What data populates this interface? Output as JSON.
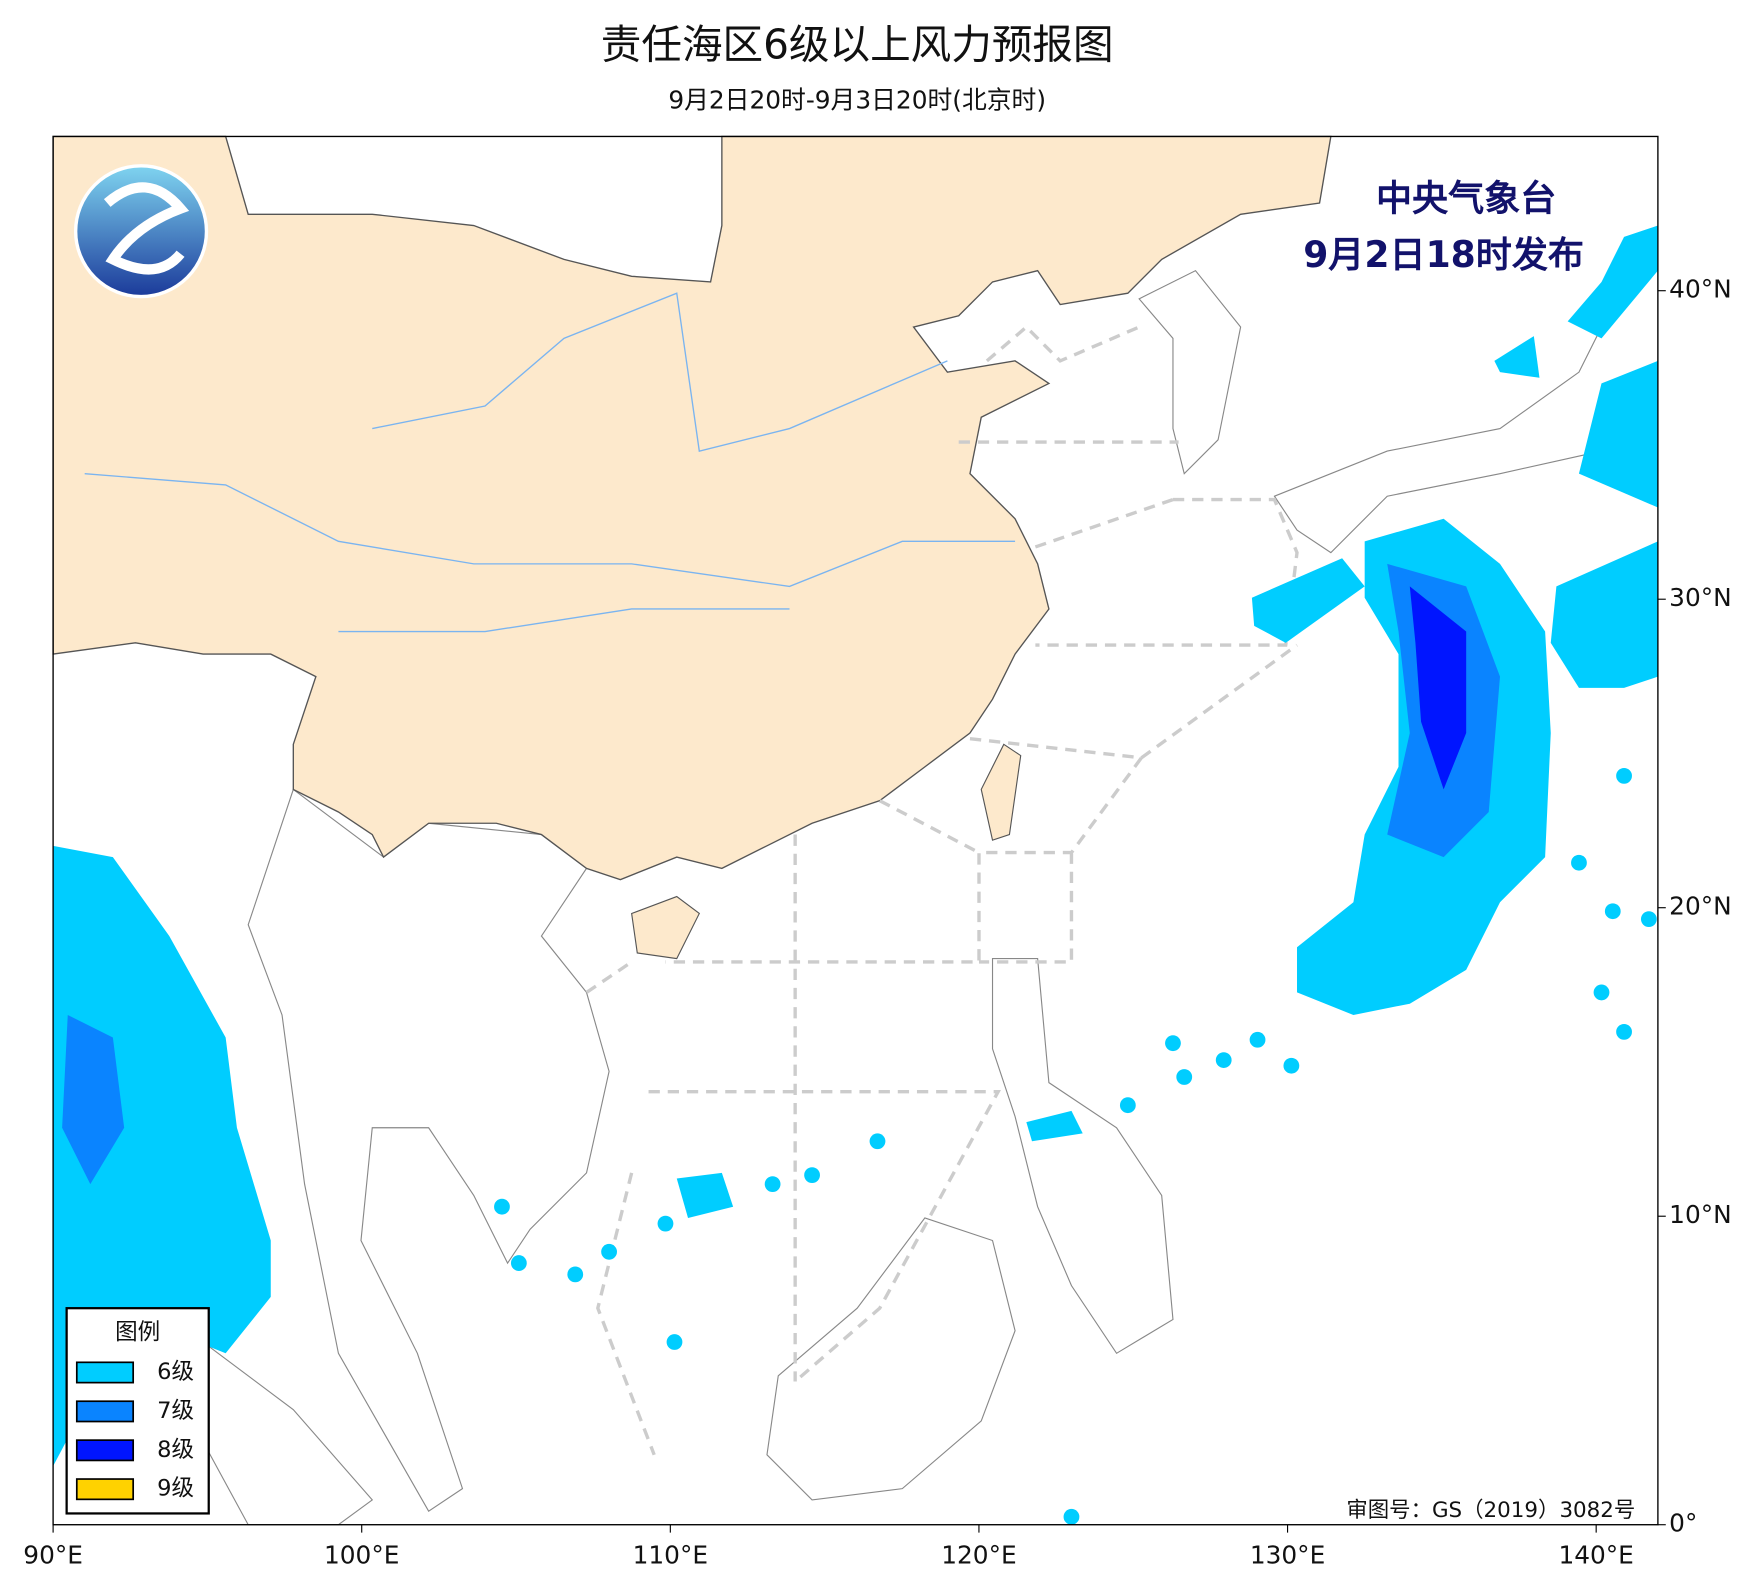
{
  "header": {
    "title": "责任海区6级以上风力预报图",
    "subtitle": "9月2日20时-9月3日20时(北京时)"
  },
  "issuer": {
    "agency": "中央气象台",
    "issued": "9月2日18时发布"
  },
  "legend": {
    "title": "图例",
    "items": [
      {
        "name": "6级",
        "color": "#00cdff"
      },
      {
        "name": "7级",
        "color": "#0a84ff"
      },
      {
        "name": "8级",
        "color": "#0015ff"
      },
      {
        "name": "9级",
        "color": "#ffd200"
      }
    ]
  },
  "map": {
    "xlim": [
      90,
      142
    ],
    "ylim": [
      0,
      45
    ],
    "xticks": [
      {
        "value": 90,
        "label": "90°E"
      },
      {
        "value": 100,
        "label": "100°E"
      },
      {
        "value": 110,
        "label": "110°E"
      },
      {
        "value": 120,
        "label": "120°E"
      },
      {
        "value": 130,
        "label": "130°E"
      },
      {
        "value": 140,
        "label": "140°E"
      }
    ],
    "yticks": [
      {
        "value": 0,
        "label": "0°"
      },
      {
        "value": 10,
        "label": "10°N"
      },
      {
        "value": 20,
        "label": "20°N"
      },
      {
        "value": 30,
        "label": "30°N"
      },
      {
        "value": 40,
        "label": "40°N"
      }
    ]
  },
  "approval": "审图号：GS（2019）3082号"
}
